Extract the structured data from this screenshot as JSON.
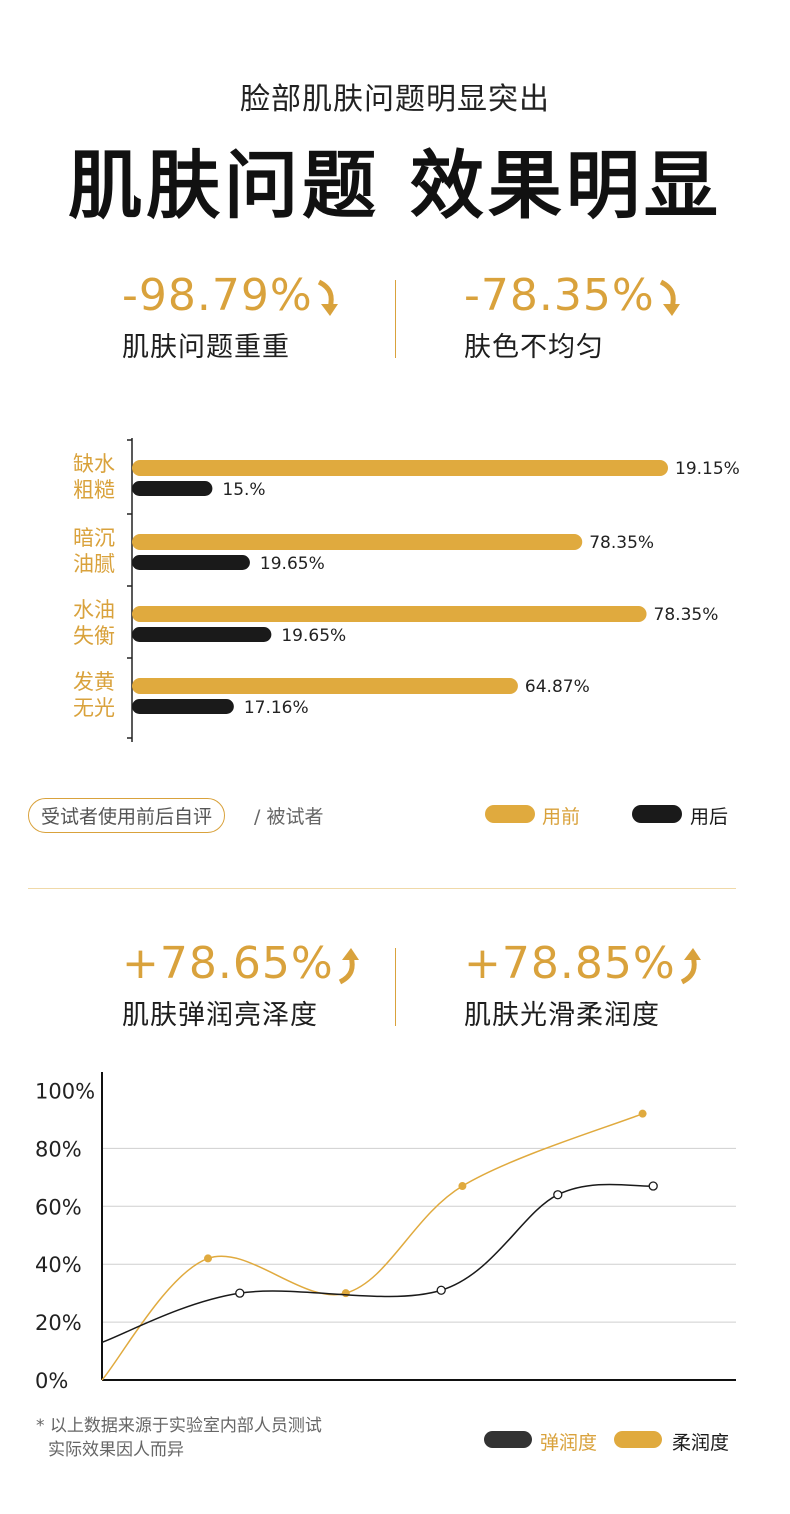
{
  "header": {
    "subtitle": "脸部肌肤问题明显突出",
    "title": "肌肤问题 效果明显"
  },
  "stats_top": [
    {
      "value": "-98.79%",
      "label": "肌肤问题重重",
      "arrow": "down-arrow-icon"
    },
    {
      "value": "-78.35%",
      "label": "肤色不均匀",
      "arrow": "down-arrow-icon"
    }
  ],
  "stats_bottom": [
    {
      "value": "+78.65%",
      "label": "肌肤弹润亮泽度",
      "arrow": "up-arrow-icon"
    },
    {
      "value": "+78.85%",
      "label": "肌肤光滑柔润度",
      "arrow": "up-arrow-icon"
    }
  ],
  "bar_legend": {
    "pill": "受试者使用前后自评",
    "note": "/ 被试者",
    "before": "用前",
    "after": "用后"
  },
  "line_legend": {
    "a": "弹润度",
    "b": "柔润度"
  },
  "footnote": [
    "* 以上数据来源于实验室内部人员测试",
    "实际效果因人而异"
  ],
  "colors": {
    "gold": "#e0aa3e",
    "dark": "#1a1a1a",
    "text_gold": "#d9a23c"
  },
  "chart_data": [
    {
      "type": "bar",
      "orientation": "horizontal",
      "categories": [
        [
          "缺水",
          "粗糙"
        ],
        [
          "暗沉",
          "油腻"
        ],
        [
          "水油",
          "失衡"
        ],
        [
          "发黄",
          "无光"
        ]
      ],
      "series": [
        {
          "name": "用前",
          "values": [
            19.15,
            78.35,
            78.35,
            64.87
          ],
          "labels": [
            "19.15%",
            "78.35%",
            "78.35%",
            "64.87%"
          ],
          "color": "#e0aa3e"
        },
        {
          "name": "用后",
          "values": [
            15.0,
            19.65,
            19.65,
            17.16
          ],
          "labels": [
            "15.%",
            "19.65%",
            "19.65%",
            "17.16%"
          ],
          "color": "#1a1a1a"
        }
      ],
      "display_lengths": [
        100,
        84,
        96,
        72
      ],
      "display_lengths_after": [
        15,
        22,
        26,
        19
      ]
    },
    {
      "type": "line",
      "ylim": [
        0,
        100
      ],
      "yticks": [
        "100%",
        "80%",
        "60%",
        "40%",
        "20%",
        "0%"
      ],
      "grid": true,
      "series": [
        {
          "name": "柔润度",
          "color": "#e0aa3e",
          "marker": "filled",
          "points": [
            [
              0,
              0
            ],
            [
              1,
              42
            ],
            [
              2.3,
              30
            ],
            [
              3.4,
              67
            ],
            [
              5.1,
              92
            ]
          ]
        },
        {
          "name": "弹润度",
          "color": "#1a1a1a",
          "marker": "hollow",
          "points": [
            [
              0,
              13
            ],
            [
              1.3,
              30
            ],
            [
              3.2,
              31
            ],
            [
              4.3,
              64
            ],
            [
              5.2,
              67
            ]
          ]
        }
      ]
    }
  ]
}
